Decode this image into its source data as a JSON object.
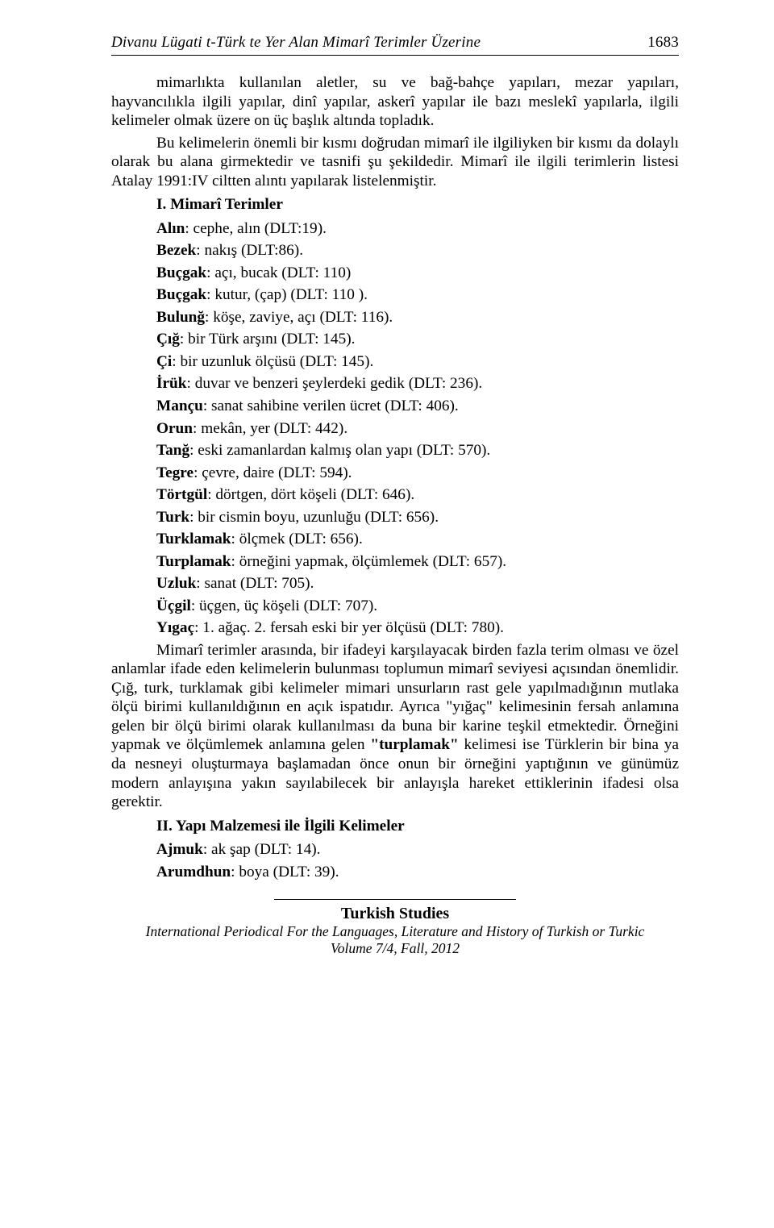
{
  "header": {
    "title": "Divanu Lügati t-Türk te Yer Alan Mimarî Terimler Üzerine",
    "pageNumber": "1683"
  },
  "intro": {
    "para1": "mimarlıkta kullanılan aletler, su ve bağ-bahçe yapıları, mezar yapıları, hayvancılıkla ilgili yapılar, dinî yapılar, askerî yapılar ile bazı meslekî yapılarla, ilgili kelimeler olmak üzere on üç başlık altında topladık.",
    "para2": "Bu kelimelerin önemli bir kısmı doğrudan mimarî ile ilgiliyken bir kısmı da dolaylı olarak bu alana girmektedir ve tasnifi şu şekildedir. Mimarî ile ilgili terimlerin listesi Atalay 1991:IV ciltten alıntı yapılarak listelenmiştir."
  },
  "section1": {
    "heading": "I. Mimarî Terimler",
    "terms": [
      {
        "t": "Alın",
        "d": ": cephe, alın (DLT:19)."
      },
      {
        "t": "Bezek",
        "d": ": nakış (DLT:86)."
      },
      {
        "t": "Buçgak",
        "d": ": açı, bucak (DLT: 110)"
      },
      {
        "t": "Buçgak",
        "d": ": kutur, (çap) (DLT: 110 )."
      },
      {
        "t": "Bulunğ",
        "d": ": köşe, zaviye, açı (DLT: 116)."
      },
      {
        "t": "Çığ",
        "d": ": bir Türk arşını (DLT: 145)."
      },
      {
        "t": "Çi",
        "d": ": bir uzunluk ölçüsü (DLT: 145)."
      },
      {
        "t": "İrük",
        "d": ": duvar ve benzeri şeylerdeki gedik (DLT: 236)."
      },
      {
        "t": "Mançu",
        "d": ": sanat sahibine verilen ücret (DLT: 406)."
      },
      {
        "t": "Orun",
        "d": ": mekân, yer (DLT: 442)."
      },
      {
        "t": "Tanğ",
        "d": ": eski zamanlardan kalmış olan yapı (DLT: 570)."
      },
      {
        "t": "Tegre",
        "d": ": çevre, daire (DLT: 594)."
      },
      {
        "t": "Törtgül",
        "d": ": dörtgen, dört köşeli (DLT: 646)."
      },
      {
        "t": "Turk",
        "d": ": bir cismin boyu, uzunluğu (DLT: 656)."
      },
      {
        "t": "Turklamak",
        "d": ": ölçmek (DLT: 656)."
      },
      {
        "t": "Turplamak",
        "d": ": örneğini yapmak, ölçümlemek (DLT: 657)."
      },
      {
        "t": "Uzluk",
        "d": ": sanat (DLT: 705)."
      },
      {
        "t": "Üçgil",
        "d": ": üçgen, üç köşeli (DLT: 707)."
      },
      {
        "t": "Yıgaç",
        "d": ": 1. ağaç. 2. fersah eski bir yer ölçüsü (DLT: 780)."
      }
    ],
    "closingPrefix": "Mimarî terimler arasında, bir ifadeyi karşılayacak birden fazla terim olması ve özel anlamlar ifade eden kelimelerin bulunması toplumun mimarî seviyesi açısından önemlidir. Çığ, turk, turklamak gibi kelimeler mimari unsurların rast gele yapılmadığının mutlaka ölçü birimi kullanıldığının en açık ispatıdır. Ayrıca \"yığaç\" kelimesinin fersah anlamına gelen bir ölçü birimi olarak kullanılması da buna bir karine teşkil etmektedir. Örneğini yapmak ve ölçümlemek anlamına gelen ",
    "closingBold": "\"turplamak\"",
    "closingSuffix": " kelimesi ise Türklerin bir bina ya da nesneyi oluşturmaya başlamadan önce onun bir örneğini yaptığının ve günümüz modern anlayışına yakın sayılabilecek bir anlayışla hareket ettiklerinin ifadesi olsa gerektir."
  },
  "section2": {
    "heading": "II. Yapı Malzemesi ile İlgili Kelimeler",
    "terms": [
      {
        "t": "Ajmuk",
        "d": ": ak şap (DLT: 14)."
      },
      {
        "t": "Arumdhun",
        "d": ": boya (DLT: 39)."
      }
    ]
  },
  "footer": {
    "tsTitle": "Turkish Studies",
    "line1": "International Periodical For the Languages, Literature and History of Turkish or Turkic",
    "line2": "Volume 7/4, Fall, 2012"
  }
}
